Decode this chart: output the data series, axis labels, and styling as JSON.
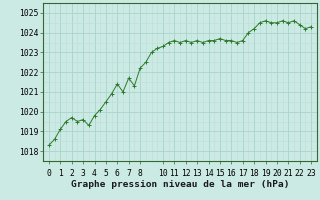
{
  "x": [
    0,
    0.5,
    1,
    1.5,
    2,
    2.5,
    3,
    3.5,
    4,
    4.5,
    5,
    5.5,
    6,
    6.5,
    7,
    7.5,
    8,
    8.5,
    9,
    9.5,
    10,
    10.5,
    11,
    11.5,
    12,
    12.5,
    13,
    13.5,
    14,
    14.5,
    15,
    15.5,
    16,
    16.5,
    17,
    17.5,
    18,
    18.5,
    19,
    19.5,
    20,
    20.5,
    21,
    21.5,
    22,
    22.5,
    23
  ],
  "y": [
    1018.3,
    1018.6,
    1019.1,
    1019.5,
    1019.7,
    1019.5,
    1019.6,
    1019.3,
    1019.8,
    1020.1,
    1020.5,
    1020.9,
    1021.4,
    1021.0,
    1021.7,
    1021.3,
    1022.2,
    1022.5,
    1023.0,
    1023.2,
    1023.3,
    1023.5,
    1023.6,
    1023.5,
    1023.6,
    1023.5,
    1023.6,
    1023.5,
    1023.6,
    1023.6,
    1023.7,
    1023.6,
    1023.6,
    1023.5,
    1023.6,
    1024.0,
    1024.2,
    1024.5,
    1024.6,
    1024.5,
    1024.5,
    1024.6,
    1024.5,
    1024.6,
    1024.4,
    1024.2,
    1024.3
  ],
  "line_color": "#2d7a2d",
  "marker_color": "#2d7a2d",
  "bg_color": "#cceae4",
  "grid_major_color": "#aad4cc",
  "grid_minor_color": "#bcddd8",
  "border_color": "#336633",
  "title": "Graphe pression niveau de la mer (hPa)",
  "xlabel_ticks": [
    0,
    1,
    2,
    3,
    4,
    5,
    6,
    7,
    8,
    10,
    11,
    12,
    13,
    14,
    15,
    16,
    17,
    18,
    19,
    20,
    21,
    22,
    23
  ],
  "ylim": [
    1017.5,
    1025.5
  ],
  "yticks": [
    1018,
    1019,
    1020,
    1021,
    1022,
    1023,
    1024,
    1025
  ],
  "xlim": [
    -0.5,
    23.5
  ],
  "title_fontsize": 6.8,
  "tick_fontsize": 5.8
}
